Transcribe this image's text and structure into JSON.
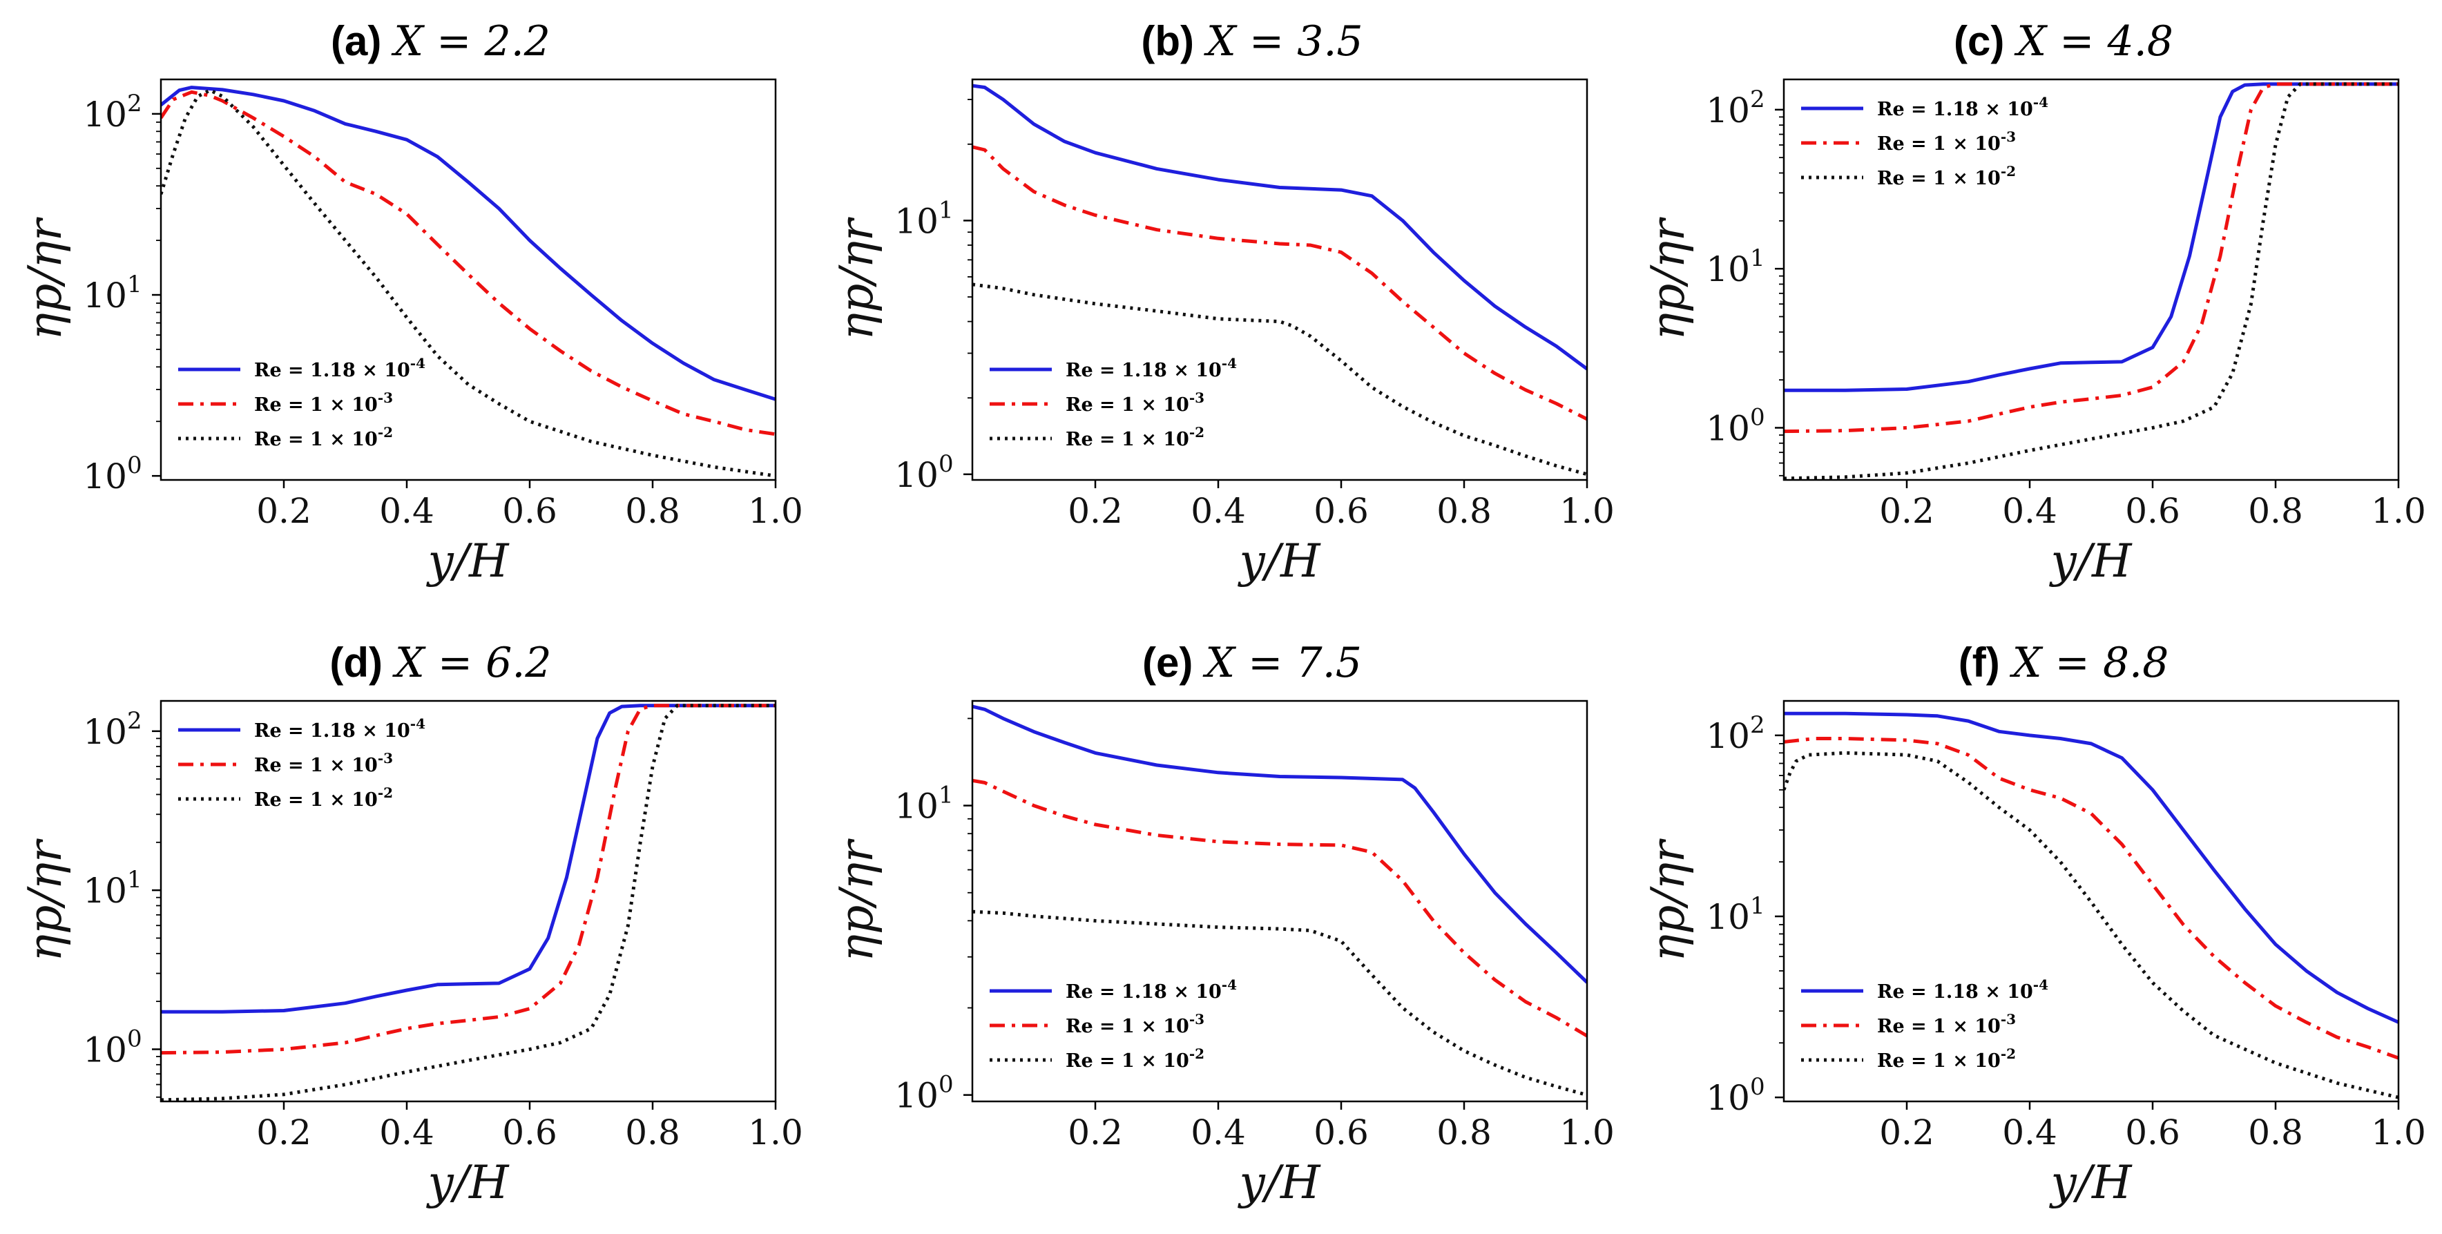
{
  "figure": {
    "style": "lines"
  },
  "legend_entries": [
    {
      "text": "Re = 1.18 × 10",
      "exp": "-4",
      "color": "#1f1fdd",
      "dash": "solid"
    },
    {
      "text": "Re = 1 × 10",
      "exp": "-3",
      "color": "#ee1111",
      "dash": "dashdot"
    },
    {
      "text": "Re = 1 × 10",
      "exp": "-2",
      "color": "#111111",
      "dash": "dotted"
    }
  ],
  "chart_data": [
    {
      "type": "line",
      "panel": "(a)",
      "title_math": "X = 2.2",
      "xlabel": "y/H",
      "ylabel": "ηp/ηr",
      "xlim": [
        0,
        1
      ],
      "ylim": [
        0.95,
        155
      ],
      "yscale": "log",
      "x_ticks": [
        "0.2",
        "0.4",
        "0.6",
        "0.8",
        "1.0"
      ],
      "y_ticks": [
        "10",
        "10",
        "10"
      ],
      "y_tick_exps": [
        "0",
        "1",
        "2"
      ],
      "legend": "lower-left",
      "series": [
        {
          "name": "Re = 1.18 × 10^-4",
          "x": [
            0,
            0.03,
            0.05,
            0.1,
            0.15,
            0.2,
            0.25,
            0.3,
            0.35,
            0.4,
            0.45,
            0.5,
            0.55,
            0.6,
            0.65,
            0.7,
            0.75,
            0.8,
            0.85,
            0.9,
            0.95,
            1.0
          ],
          "y": [
            112,
            135,
            140,
            136,
            128,
            118,
            104,
            88,
            80,
            72,
            58,
            42,
            30,
            20,
            14,
            10,
            7.2,
            5.4,
            4.2,
            3.4,
            3.0,
            2.65
          ]
        },
        {
          "name": "Re = 1 × 10^-3",
          "x": [
            0,
            0.02,
            0.05,
            0.08,
            0.1,
            0.15,
            0.2,
            0.25,
            0.3,
            0.35,
            0.4,
            0.45,
            0.5,
            0.55,
            0.6,
            0.65,
            0.7,
            0.75,
            0.8,
            0.85,
            0.9,
            0.95,
            1.0
          ],
          "y": [
            95,
            120,
            132,
            126,
            118,
            95,
            75,
            58,
            42,
            36,
            28,
            19,
            13,
            9,
            6.5,
            4.9,
            3.8,
            3.1,
            2.6,
            2.2,
            2.0,
            1.8,
            1.7
          ]
        },
        {
          "name": "Re = 1 × 10^-2",
          "x": [
            0,
            0.02,
            0.04,
            0.06,
            0.08,
            0.1,
            0.15,
            0.2,
            0.25,
            0.3,
            0.35,
            0.4,
            0.45,
            0.5,
            0.55,
            0.6,
            0.7,
            0.8,
            0.9,
            1.0
          ],
          "y": [
            36,
            60,
            95,
            125,
            135,
            125,
            85,
            52,
            32,
            20,
            12.5,
            7.5,
            4.6,
            3.2,
            2.5,
            2.0,
            1.55,
            1.3,
            1.12,
            1.0
          ]
        }
      ]
    },
    {
      "type": "line",
      "panel": "(b)",
      "title_math": "X = 3.5",
      "xlabel": "y/H",
      "ylabel": "ηp/ηr",
      "xlim": [
        0,
        1
      ],
      "ylim": [
        0.95,
        36
      ],
      "yscale": "log",
      "x_ticks": [
        "0.2",
        "0.4",
        "0.6",
        "0.8",
        "1.0"
      ],
      "y_ticks": [
        "10",
        "10"
      ],
      "y_tick_exps": [
        "0",
        "1"
      ],
      "legend": "lower-left",
      "series": [
        {
          "name": "Re = 1.18 × 10^-4",
          "x": [
            0,
            0.02,
            0.05,
            0.1,
            0.15,
            0.2,
            0.3,
            0.4,
            0.5,
            0.6,
            0.65,
            0.7,
            0.75,
            0.8,
            0.85,
            0.9,
            0.95,
            1.0
          ],
          "y": [
            34,
            33.5,
            30,
            24,
            20.5,
            18.5,
            16,
            14.5,
            13.5,
            13.2,
            12.5,
            10,
            7.5,
            5.8,
            4.6,
            3.8,
            3.2,
            2.6
          ]
        },
        {
          "name": "Re = 1 × 10^-3",
          "x": [
            0,
            0.02,
            0.05,
            0.1,
            0.15,
            0.2,
            0.3,
            0.4,
            0.5,
            0.55,
            0.6,
            0.65,
            0.7,
            0.75,
            0.8,
            0.85,
            0.9,
            0.95,
            1.0
          ],
          "y": [
            19.5,
            19,
            16,
            13,
            11.5,
            10.5,
            9.2,
            8.5,
            8.1,
            8.0,
            7.5,
            6.2,
            4.8,
            3.8,
            3.0,
            2.5,
            2.15,
            1.9,
            1.65
          ]
        },
        {
          "name": "Re = 1 × 10^-2",
          "x": [
            0,
            0.05,
            0.1,
            0.2,
            0.3,
            0.4,
            0.5,
            0.52,
            0.55,
            0.6,
            0.65,
            0.7,
            0.75,
            0.8,
            0.85,
            0.9,
            0.95,
            1.0
          ],
          "y": [
            5.6,
            5.4,
            5.1,
            4.7,
            4.4,
            4.1,
            4.0,
            3.85,
            3.5,
            2.8,
            2.2,
            1.85,
            1.6,
            1.42,
            1.3,
            1.18,
            1.08,
            1.0
          ]
        }
      ]
    },
    {
      "type": "line",
      "panel": "(c)",
      "title_math": "X = 4.8",
      "xlabel": "y/H",
      "ylabel": "ηp/ηr",
      "xlim": [
        0,
        1
      ],
      "ylim": [
        0.47,
        155
      ],
      "yscale": "log",
      "x_ticks": [
        "0.2",
        "0.4",
        "0.6",
        "0.8",
        "1.0"
      ],
      "y_ticks": [
        "10",
        "10",
        "10"
      ],
      "y_tick_exps": [
        "0",
        "1",
        "2"
      ],
      "legend": "top-left",
      "series": [
        {
          "name": "Re = 1.18 × 10^-4",
          "x": [
            0,
            0.1,
            0.2,
            0.3,
            0.35,
            0.4,
            0.45,
            0.5,
            0.55,
            0.6,
            0.63,
            0.66,
            0.69,
            0.71,
            0.73,
            0.75,
            0.78,
            1.0
          ],
          "y": [
            1.72,
            1.72,
            1.75,
            1.95,
            2.15,
            2.35,
            2.55,
            2.58,
            2.6,
            3.2,
            5.0,
            12,
            40,
            90,
            130,
            143,
            145,
            145
          ]
        },
        {
          "name": "Re = 1 × 10^-3",
          "x": [
            0,
            0.1,
            0.2,
            0.3,
            0.35,
            0.4,
            0.45,
            0.5,
            0.55,
            0.6,
            0.65,
            0.68,
            0.71,
            0.74,
            0.76,
            0.78,
            0.8,
            1.0
          ],
          "y": [
            0.95,
            0.96,
            1.0,
            1.1,
            1.22,
            1.35,
            1.45,
            1.52,
            1.6,
            1.8,
            2.6,
            4.5,
            12,
            45,
            100,
            138,
            145,
            145
          ]
        },
        {
          "name": "Re = 1 × 10^-2",
          "x": [
            0,
            0.1,
            0.2,
            0.3,
            0.4,
            0.5,
            0.6,
            0.65,
            0.7,
            0.73,
            0.76,
            0.78,
            0.8,
            0.82,
            0.84,
            1.0
          ],
          "y": [
            0.48,
            0.49,
            0.52,
            0.6,
            0.72,
            0.85,
            1.0,
            1.1,
            1.35,
            2.2,
            6,
            20,
            60,
            120,
            145,
            145
          ]
        }
      ]
    },
    {
      "type": "line",
      "panel": "(d)",
      "title_math": "X = 6.2",
      "xlabel": "y/H",
      "ylabel": "ηp/ηr",
      "xlim": [
        0,
        1
      ],
      "ylim": [
        0.47,
        155
      ],
      "yscale": "log",
      "x_ticks": [
        "0.2",
        "0.4",
        "0.6",
        "0.8",
        "1.0"
      ],
      "y_ticks": [
        "10",
        "10",
        "10"
      ],
      "y_tick_exps": [
        "0",
        "1",
        "2"
      ],
      "legend": "top-left",
      "series": [
        {
          "name": "Re = 1.18 × 10^-4",
          "x": [
            0,
            0.1,
            0.2,
            0.3,
            0.35,
            0.4,
            0.45,
            0.5,
            0.55,
            0.6,
            0.63,
            0.66,
            0.69,
            0.71,
            0.73,
            0.75,
            0.78,
            1.0
          ],
          "y": [
            1.72,
            1.72,
            1.75,
            1.95,
            2.15,
            2.35,
            2.55,
            2.58,
            2.6,
            3.2,
            5.0,
            12,
            40,
            90,
            130,
            143,
            145,
            145
          ]
        },
        {
          "name": "Re = 1 × 10^-3",
          "x": [
            0,
            0.1,
            0.2,
            0.3,
            0.35,
            0.4,
            0.45,
            0.5,
            0.55,
            0.6,
            0.65,
            0.68,
            0.71,
            0.74,
            0.76,
            0.78,
            0.8,
            1.0
          ],
          "y": [
            0.95,
            0.96,
            1.0,
            1.1,
            1.22,
            1.35,
            1.45,
            1.52,
            1.6,
            1.8,
            2.6,
            4.5,
            12,
            45,
            100,
            138,
            145,
            145
          ]
        },
        {
          "name": "Re = 1 × 10^-2",
          "x": [
            0,
            0.1,
            0.2,
            0.3,
            0.4,
            0.5,
            0.6,
            0.65,
            0.7,
            0.73,
            0.76,
            0.78,
            0.8,
            0.82,
            0.84,
            1.0
          ],
          "y": [
            0.48,
            0.49,
            0.52,
            0.6,
            0.72,
            0.85,
            1.0,
            1.1,
            1.35,
            2.2,
            6,
            20,
            60,
            120,
            145,
            145
          ]
        }
      ]
    },
    {
      "type": "line",
      "panel": "(e)",
      "title_math": "X = 7.5",
      "xlabel": "y/H",
      "ylabel": "ηp/ηr",
      "xlim": [
        0,
        1
      ],
      "ylim": [
        0.95,
        23
      ],
      "yscale": "log",
      "x_ticks": [
        "0.2",
        "0.4",
        "0.6",
        "0.8",
        "1.0"
      ],
      "y_ticks": [
        "10",
        "10"
      ],
      "y_tick_exps": [
        "0",
        "1"
      ],
      "legend": "lower-left",
      "series": [
        {
          "name": "Re = 1.18 × 10^-4",
          "x": [
            0,
            0.02,
            0.05,
            0.1,
            0.15,
            0.2,
            0.3,
            0.4,
            0.5,
            0.6,
            0.7,
            0.72,
            0.75,
            0.8,
            0.85,
            0.9,
            0.95,
            1.0
          ],
          "y": [
            22,
            21.5,
            20,
            18,
            16.5,
            15.2,
            13.8,
            13,
            12.6,
            12.5,
            12.3,
            11.5,
            9.5,
            6.8,
            5.0,
            3.9,
            3.1,
            2.45
          ]
        },
        {
          "name": "Re = 1 × 10^-3",
          "x": [
            0,
            0.02,
            0.05,
            0.1,
            0.15,
            0.2,
            0.3,
            0.4,
            0.5,
            0.6,
            0.65,
            0.7,
            0.75,
            0.8,
            0.85,
            0.9,
            0.95,
            1.0
          ],
          "y": [
            12.2,
            12,
            11.2,
            10,
            9.2,
            8.6,
            7.9,
            7.5,
            7.35,
            7.3,
            6.9,
            5.5,
            4.0,
            3.1,
            2.5,
            2.1,
            1.85,
            1.6
          ]
        },
        {
          "name": "Re = 1 × 10^-2",
          "x": [
            0,
            0.05,
            0.1,
            0.2,
            0.3,
            0.4,
            0.5,
            0.55,
            0.6,
            0.65,
            0.7,
            0.75,
            0.8,
            0.85,
            0.9,
            0.95,
            1.0
          ],
          "y": [
            4.3,
            4.25,
            4.15,
            4.0,
            3.9,
            3.8,
            3.75,
            3.7,
            3.4,
            2.6,
            2.0,
            1.65,
            1.42,
            1.27,
            1.15,
            1.07,
            1.0
          ]
        }
      ]
    },
    {
      "type": "line",
      "panel": "(f)",
      "title_math": "X = 8.8",
      "xlabel": "y/H",
      "ylabel": "ηp/ηr",
      "xlim": [
        0,
        1
      ],
      "ylim": [
        0.95,
        155
      ],
      "yscale": "log",
      "x_ticks": [
        "0.2",
        "0.4",
        "0.6",
        "0.8",
        "1.0"
      ],
      "y_ticks": [
        "10",
        "10",
        "10"
      ],
      "y_tick_exps": [
        "0",
        "1",
        "2"
      ],
      "legend": "lower-left",
      "series": [
        {
          "name": "Re = 1.18 × 10^-4",
          "x": [
            0,
            0.1,
            0.2,
            0.25,
            0.3,
            0.35,
            0.4,
            0.45,
            0.5,
            0.55,
            0.6,
            0.65,
            0.7,
            0.75,
            0.8,
            0.85,
            0.9,
            0.95,
            1.0
          ],
          "y": [
            132,
            132,
            130,
            128,
            120,
            105,
            100,
            96,
            90,
            75,
            50,
            30,
            18,
            11,
            7,
            5,
            3.8,
            3.1,
            2.6
          ]
        },
        {
          "name": "Re = 1 × 10^-3",
          "x": [
            0,
            0.05,
            0.1,
            0.2,
            0.25,
            0.3,
            0.35,
            0.4,
            0.45,
            0.5,
            0.55,
            0.6,
            0.65,
            0.7,
            0.75,
            0.8,
            0.85,
            0.9,
            0.95,
            1.0
          ],
          "y": [
            92,
            96,
            96,
            94,
            90,
            78,
            58,
            50,
            45,
            37,
            25,
            15,
            9,
            6,
            4.3,
            3.2,
            2.6,
            2.15,
            1.9,
            1.65
          ]
        },
        {
          "name": "Re = 1 × 10^-2",
          "x": [
            0,
            0.01,
            0.02,
            0.04,
            0.1,
            0.2,
            0.25,
            0.3,
            0.35,
            0.4,
            0.45,
            0.5,
            0.55,
            0.6,
            0.65,
            0.7,
            0.8,
            0.9,
            1.0
          ],
          "y": [
            50,
            62,
            72,
            78,
            80,
            78,
            72,
            55,
            40,
            30,
            20,
            12,
            7,
            4.3,
            3.0,
            2.2,
            1.55,
            1.2,
            1.0
          ]
        }
      ]
    }
  ]
}
